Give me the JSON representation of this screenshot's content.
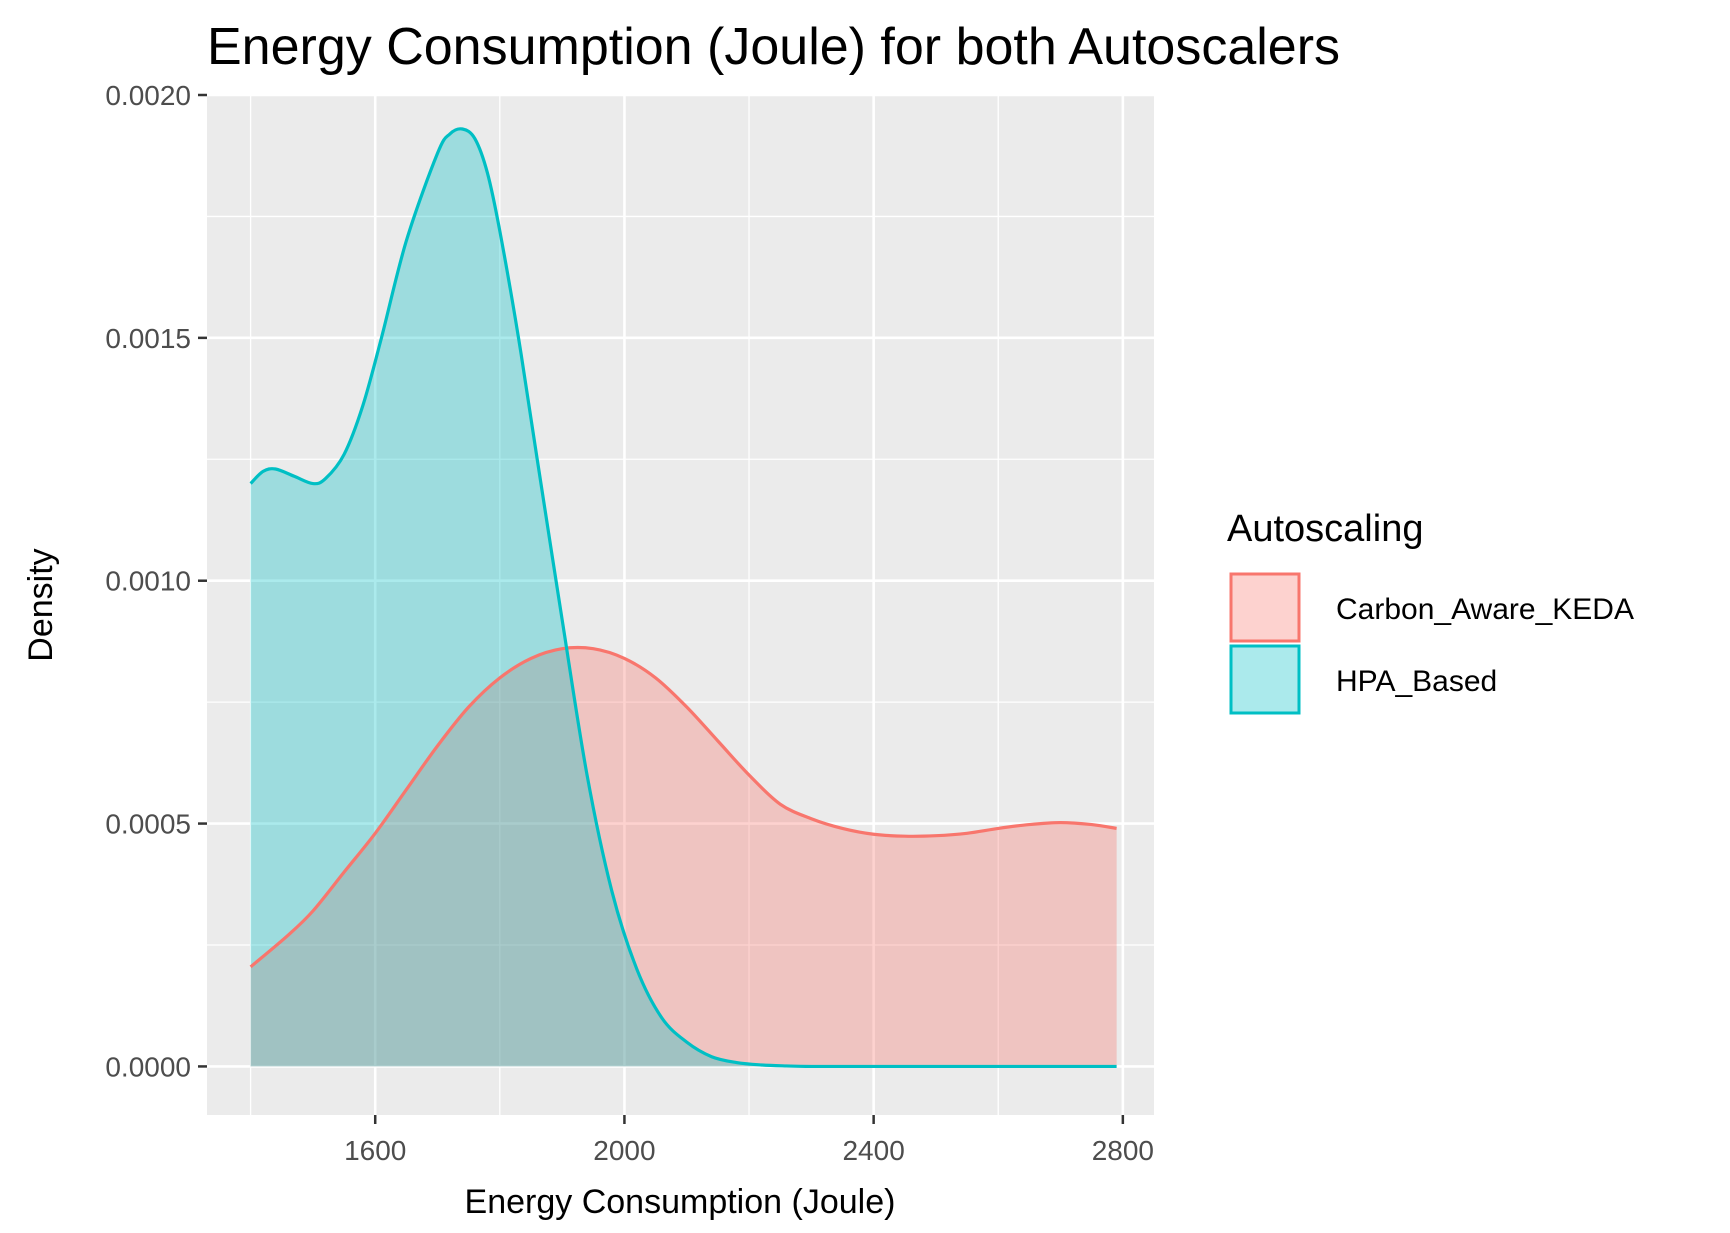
{
  "chart_data": {
    "type": "area",
    "title": "Energy Consumption (Joule) for both Autoscalers",
    "xlabel": "Energy Consumption (Joule)",
    "ylabel": "Density",
    "xlim": [
      1330,
      2850
    ],
    "ylim": [
      -0.0001,
      0.002
    ],
    "x_ticks": [
      1600,
      2000,
      2400,
      2800
    ],
    "x_tick_labels": [
      "1600",
      "2000",
      "2400",
      "2800"
    ],
    "y_ticks": [
      0.0,
      0.0005,
      0.001,
      0.0015,
      0.002
    ],
    "y_tick_labels": [
      "0.0000",
      "0.0005",
      "0.0010",
      "0.0015",
      "0.0020"
    ],
    "grid": true,
    "legend": {
      "title": "Autoscaling",
      "position": "right"
    },
    "series": [
      {
        "name": "Carbon_Aware_KEDA",
        "line_color": "#F8766D",
        "fill_color": "#F8766D",
        "x": [
          1400,
          1460,
          1500,
          1550,
          1600,
          1650,
          1700,
          1750,
          1800,
          1850,
          1900,
          1950,
          2000,
          2050,
          2100,
          2150,
          2200,
          2250,
          2300,
          2350,
          2400,
          2450,
          2500,
          2550,
          2600,
          2650,
          2700,
          2750,
          2790
        ],
        "values": [
          0.000205,
          0.00027,
          0.00032,
          0.0004,
          0.00048,
          0.00057,
          0.00066,
          0.00074,
          0.0008,
          0.00084,
          0.00086,
          0.00086,
          0.00084,
          0.0008,
          0.00074,
          0.00067,
          0.0006,
          0.00054,
          0.00051,
          0.00049,
          0.000478,
          0.000474,
          0.000475,
          0.00048,
          0.00049,
          0.000498,
          0.000502,
          0.000498,
          0.00049
        ]
      },
      {
        "name": "HPA_Based",
        "line_color": "#00BFC4",
        "fill_color": "#00BFC4",
        "x": [
          1400,
          1420,
          1440,
          1470,
          1500,
          1520,
          1550,
          1580,
          1610,
          1650,
          1700,
          1720,
          1740,
          1760,
          1780,
          1800,
          1830,
          1860,
          1900,
          1940,
          1980,
          2020,
          2060,
          2100,
          2140,
          2180,
          2220,
          2260,
          2300,
          2400,
          2500,
          2600,
          2700,
          2790
        ],
        "values": [
          0.0012,
          0.001225,
          0.00123,
          0.001215,
          0.0012,
          0.00121,
          0.00126,
          0.00136,
          0.0015,
          0.0017,
          0.00188,
          0.00192,
          0.00193,
          0.00191,
          0.00184,
          0.00172,
          0.0015,
          0.00125,
          0.00092,
          0.0006,
          0.00036,
          0.0002,
          0.0001,
          5e-05,
          2e-05,
          8e-06,
          3e-06,
          1e-06,
          0.0,
          0.0,
          0.0,
          0.0,
          0.0,
          0.0
        ]
      }
    ]
  }
}
